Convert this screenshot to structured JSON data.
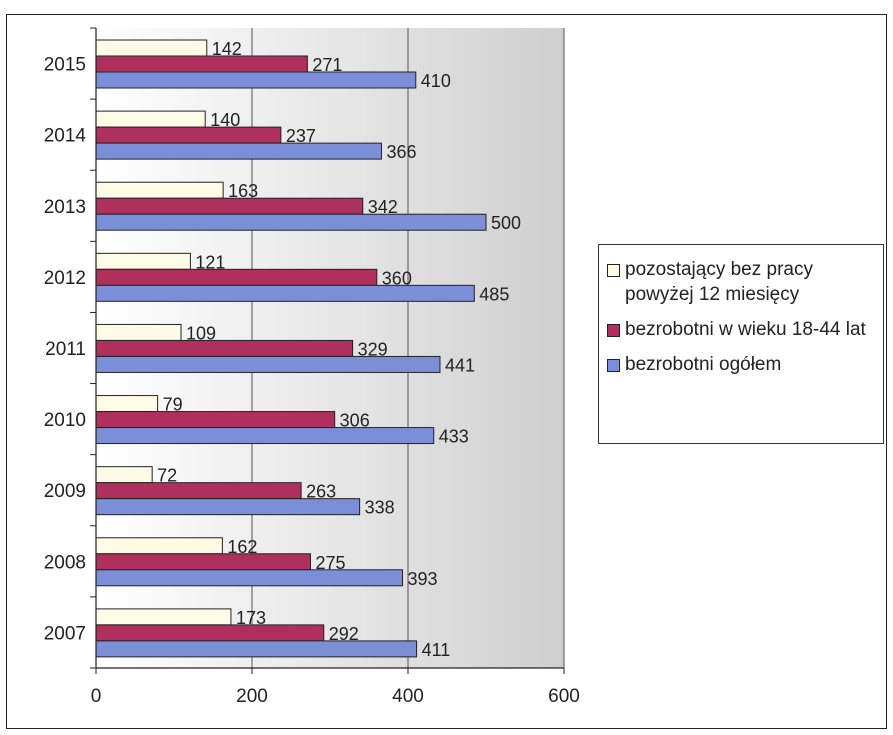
{
  "chart_data": {
    "type": "bar",
    "orientation": "horizontal",
    "categories": [
      "2015",
      "2014",
      "2013",
      "2012",
      "2011",
      "2010",
      "2009",
      "2008",
      "2007"
    ],
    "series": [
      {
        "name": "pozostający bez pracy powyżej 12 miesięcy",
        "color": "#fffbe6",
        "values": [
          142,
          140,
          163,
          121,
          109,
          79,
          72,
          162,
          173
        ]
      },
      {
        "name": "bezrobotni w wieku 18-44 lat",
        "color": "#b0305d",
        "values": [
          271,
          237,
          342,
          360,
          329,
          306,
          263,
          275,
          292
        ]
      },
      {
        "name": "bezrobotni ogółem",
        "color": "#7b8fd8",
        "values": [
          410,
          366,
          500,
          485,
          441,
          433,
          338,
          393,
          411
        ]
      }
    ],
    "xlim": [
      0,
      600
    ],
    "xticks": [
      "0",
      "200",
      "400",
      "600"
    ],
    "grid": true,
    "legend_position": "right",
    "plot_background": "#d9d9d9"
  },
  "legend": {
    "items": [
      {
        "label": "pozostający bez pracy powyżej 12 miesięcy",
        "color": "#fffbe6"
      },
      {
        "label": "bezrobotni w wieku 18-44 lat",
        "color": "#b0305d"
      },
      {
        "label": "bezrobotni ogółem",
        "color": "#7b8fd8"
      }
    ]
  }
}
